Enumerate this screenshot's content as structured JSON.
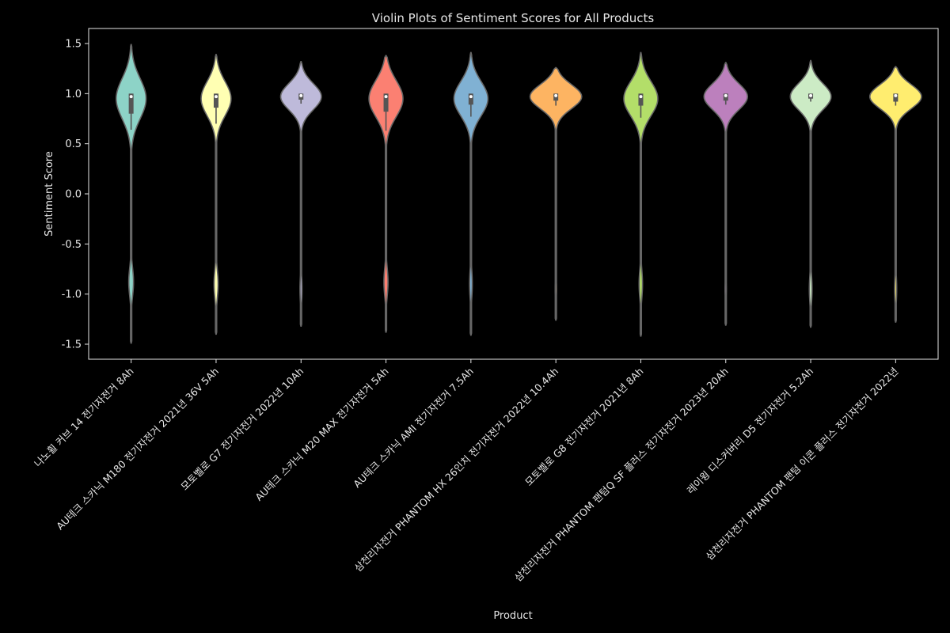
{
  "chart_data": {
    "type": "violin",
    "title": "Violin Plots of Sentiment Scores for All Products",
    "xlabel": "Product",
    "ylabel": "Sentiment Score",
    "ylim": [
      -1.65,
      1.65
    ],
    "yticks": [
      1.5,
      1.0,
      0.5,
      0.0,
      -0.5,
      -1.0,
      -1.5
    ],
    "ytick_labels": [
      "1.5",
      "1.0",
      "0.5",
      "0.0",
      "-0.5",
      "-1.0",
      "-1.5"
    ],
    "categories": [
      "나노휠 커브 14 전기자전거 8Ah",
      "AU테크 스카닉 M180 전기자전거 2021년 36V 5Ah",
      "모토벨로 G7 전기자전거 2022년 10Ah",
      "AU테크 스카닉 M20 MAX 전기자전거 5Ah",
      "AU테크 스카닉 AMI 전기자전거 7.5Ah",
      "삼천리자전거 PHANTOM HX 26인치 전기자전거 2022년 10.4Ah",
      "모토벨로 G8 전기자전거 2021년 8Ah",
      "삼천리자전거 PHANTOM 팬텀Q SF 플러스 전기자전거 2023년 20Ah",
      "레이윙 디스커버리 D5 전기자전거 5.2Ah",
      "삼천리자전거 PHANTOM 팬텀 이콘 플러스 전기자전거 2022년"
    ],
    "colors": [
      "#8dd3c7",
      "#ffffb3",
      "#bebada",
      "#fb8072",
      "#80b1d3",
      "#fdb462",
      "#b3de69",
      "#bc80bd",
      "#ccebc5",
      "#ffed6f"
    ],
    "violins": [
      {
        "min": -1.49,
        "max": 1.49,
        "q1": 0.8,
        "median": 0.97,
        "q3": 1.0,
        "whisker_low": 0.64,
        "whisker_high": 1.0,
        "main_width": 0.44,
        "main_center": 0.95,
        "main_spread": 0.2,
        "neg_center": -0.88,
        "neg_width": 0.07
      },
      {
        "min": -1.4,
        "max": 1.39,
        "q1": 0.86,
        "median": 0.97,
        "q3": 1.0,
        "whisker_low": 0.7,
        "whisker_high": 1.0,
        "main_width": 0.44,
        "main_center": 0.95,
        "main_spread": 0.17,
        "neg_center": -0.9,
        "neg_width": 0.06
      },
      {
        "min": -1.32,
        "max": 1.32,
        "q1": 0.94,
        "median": 0.98,
        "q3": 1.0,
        "whisker_low": 0.9,
        "whisker_high": 1.0,
        "main_width": 0.6,
        "main_center": 0.97,
        "main_spread": 0.13,
        "neg_center": -0.95,
        "neg_width": 0.03
      },
      {
        "min": -1.38,
        "max": 1.38,
        "q1": 0.82,
        "median": 0.97,
        "q3": 1.0,
        "whisker_low": 0.63,
        "whisker_high": 1.0,
        "main_width": 0.5,
        "main_center": 0.95,
        "main_spread": 0.18,
        "neg_center": -0.88,
        "neg_width": 0.06
      },
      {
        "min": -1.41,
        "max": 1.41,
        "q1": 0.89,
        "median": 0.97,
        "q3": 1.0,
        "whisker_low": 0.77,
        "whisker_high": 1.0,
        "main_width": 0.5,
        "main_center": 0.95,
        "main_spread": 0.17,
        "neg_center": -0.9,
        "neg_width": 0.04
      },
      {
        "min": -1.26,
        "max": 1.26,
        "q1": 0.93,
        "median": 0.98,
        "q3": 1.0,
        "whisker_low": 0.88,
        "whisker_high": 1.0,
        "main_width": 0.76,
        "main_center": 0.97,
        "main_spread": 0.12,
        "neg_center": -0.95,
        "neg_width": 0.02
      },
      {
        "min": -1.42,
        "max": 1.41,
        "q1": 0.88,
        "median": 0.97,
        "q3": 1.0,
        "whisker_low": 0.76,
        "whisker_high": 1.0,
        "main_width": 0.5,
        "main_center": 0.95,
        "main_spread": 0.17,
        "neg_center": -0.9,
        "neg_width": 0.05
      },
      {
        "min": -1.31,
        "max": 1.31,
        "q1": 0.93,
        "median": 0.98,
        "q3": 1.0,
        "whisker_low": 0.89,
        "whisker_high": 1.0,
        "main_width": 0.64,
        "main_center": 0.97,
        "main_spread": 0.13,
        "neg_center": -0.95,
        "neg_width": 0.02
      },
      {
        "min": -1.33,
        "max": 1.33,
        "q1": 0.95,
        "median": 0.98,
        "q3": 1.0,
        "whisker_low": 0.92,
        "whisker_high": 1.0,
        "main_width": 0.6,
        "main_center": 0.97,
        "main_spread": 0.13,
        "neg_center": -0.95,
        "neg_width": 0.04
      },
      {
        "min": -1.28,
        "max": 1.27,
        "q1": 0.92,
        "median": 0.98,
        "q3": 1.0,
        "whisker_low": 0.88,
        "whisker_high": 1.0,
        "main_width": 0.76,
        "main_center": 0.97,
        "main_spread": 0.12,
        "neg_center": -0.95,
        "neg_width": 0.03
      }
    ],
    "grid": false,
    "legend": "none"
  }
}
